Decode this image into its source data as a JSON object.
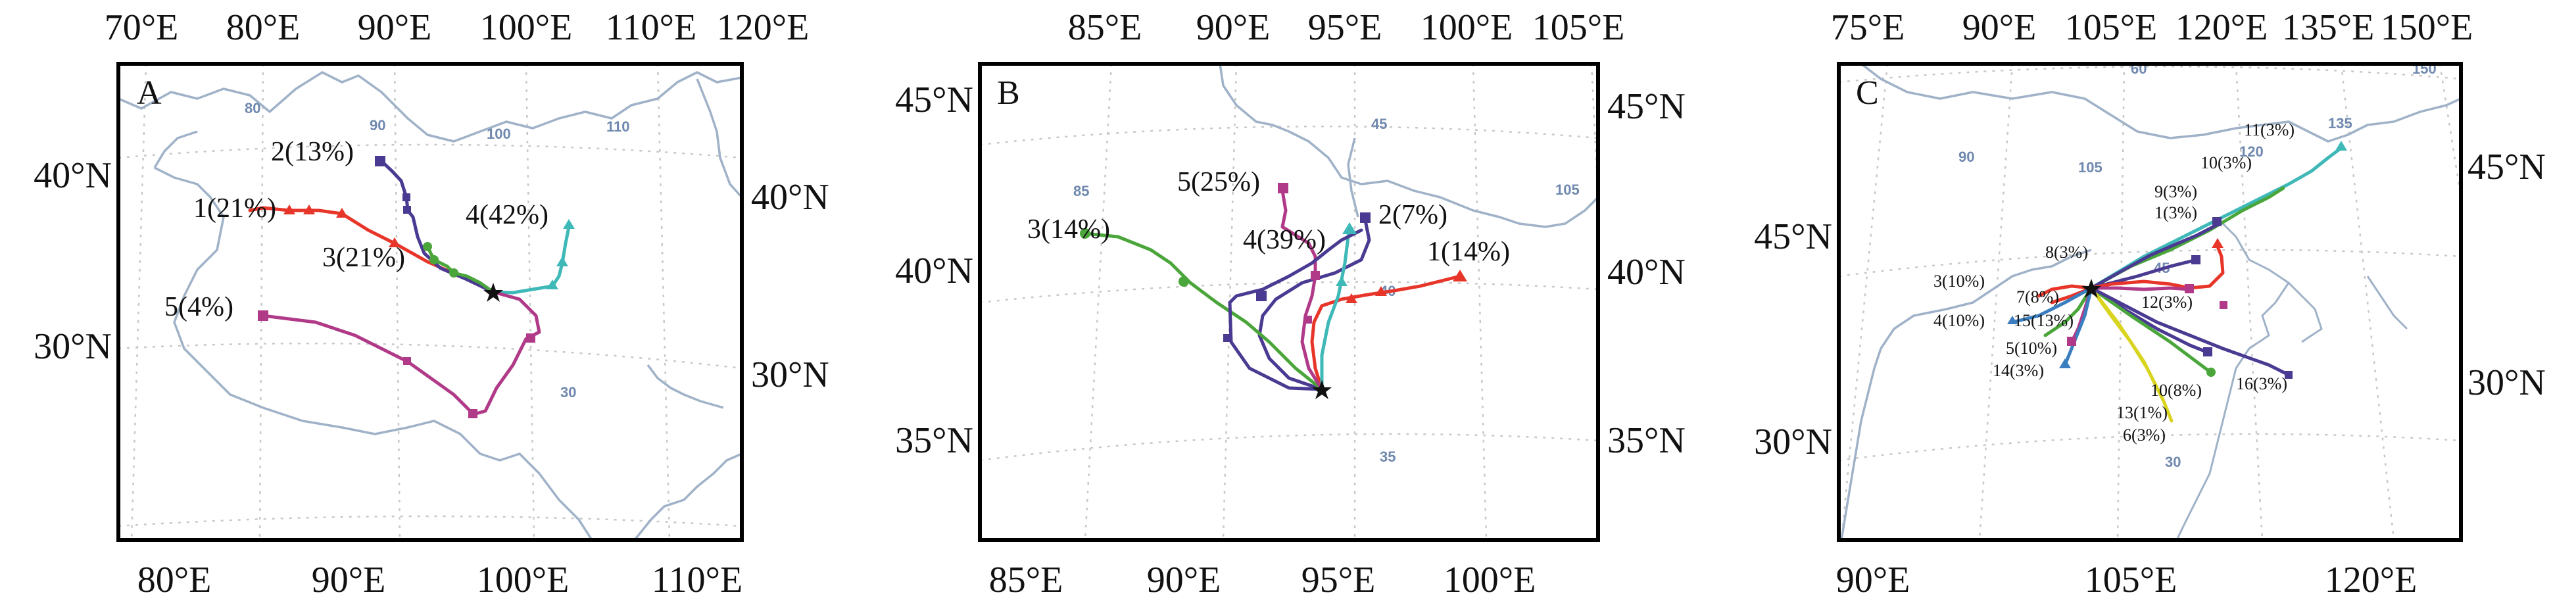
{
  "palette": {
    "red": "#e8352a",
    "purple": "#4a3a92",
    "green": "#4aa63a",
    "teal": "#3fb8b8",
    "magenta": "#b03a88",
    "yellow": "#d9d41f",
    "blue": "#3a7ec0"
  },
  "panels": [
    {
      "id": "A",
      "letter": "A",
      "top_ticks": [
        "70°E",
        "80°E",
        "90°E",
        "100°E",
        "110°E",
        "120°E"
      ],
      "bottom_ticks": [
        "80°E",
        "90°E",
        "100°E",
        "110°E"
      ],
      "left_ticks": [
        "40°N",
        "30°N"
      ],
      "right_ticks": [
        "40°N",
        "30°N"
      ],
      "grid_values": [
        "80",
        "90",
        "100",
        "110",
        "30"
      ],
      "trajectories": [
        {
          "label": "1(21%)",
          "color": "red"
        },
        {
          "label": "2(13%)",
          "color": "purple"
        },
        {
          "label": "3(21%)",
          "color": "green"
        },
        {
          "label": "4(42%)",
          "color": "teal"
        },
        {
          "label": "5(4%)",
          "color": "magenta"
        }
      ]
    },
    {
      "id": "B",
      "letter": "B",
      "top_ticks": [
        "85°E",
        "90°E",
        "95°E",
        "100°E",
        "105°E"
      ],
      "bottom_ticks": [
        "85°E",
        "90°E",
        "95°E",
        "100°E"
      ],
      "left_ticks": [
        "45°N",
        "40°N",
        "35°N"
      ],
      "right_ticks": [
        "45°N",
        "40°N",
        "35°N"
      ],
      "grid_values": [
        "85",
        "45",
        "105",
        "40",
        "35"
      ],
      "trajectories": [
        {
          "label": "1(14%)",
          "color": "red"
        },
        {
          "label": "2(7%)",
          "color": "purple"
        },
        {
          "label": "3(14%)",
          "color": "green"
        },
        {
          "label": "4(39%)",
          "color": "teal"
        },
        {
          "label": "5(25%)",
          "color": "magenta"
        }
      ]
    },
    {
      "id": "C",
      "letter": "C",
      "top_ticks": [
        "75°E",
        "90°E",
        "105°E",
        "120°E",
        "135°E",
        "150°E"
      ],
      "bottom_ticks": [
        "90°E",
        "105°E",
        "120°E"
      ],
      "left_ticks": [
        "45°N",
        "30°N"
      ],
      "right_ticks": [
        "45°N",
        "30°N"
      ],
      "grid_values": [
        "60",
        "150",
        "90",
        "105",
        "120",
        "135",
        "45",
        "30"
      ],
      "trajectories": [
        {
          "label": "1(3%)",
          "color": "red"
        },
        {
          "label": "3(10%)",
          "color": "red"
        },
        {
          "label": "4(10%)",
          "color": "blue"
        },
        {
          "label": "5(10%)",
          "color": "magenta"
        },
        {
          "label": "6(3%)",
          "color": "yellow"
        },
        {
          "label": "7(8%)",
          "color": "red"
        },
        {
          "label": "8(3%)",
          "color": "purple"
        },
        {
          "label": "9(3%)",
          "color": "purple"
        },
        {
          "label": "10(3%)",
          "color": "teal"
        },
        {
          "label": "10(8%)",
          "color": "purple"
        },
        {
          "label": "11(3%)",
          "color": "teal"
        },
        {
          "label": "12(3%)",
          "color": "magenta"
        },
        {
          "label": "13(1%)",
          "color": "yellow"
        },
        {
          "label": "14(3%)",
          "color": "blue"
        },
        {
          "label": "15(13%)",
          "color": "green"
        },
        {
          "label": "16(3%)",
          "color": "purple"
        }
      ]
    }
  ]
}
